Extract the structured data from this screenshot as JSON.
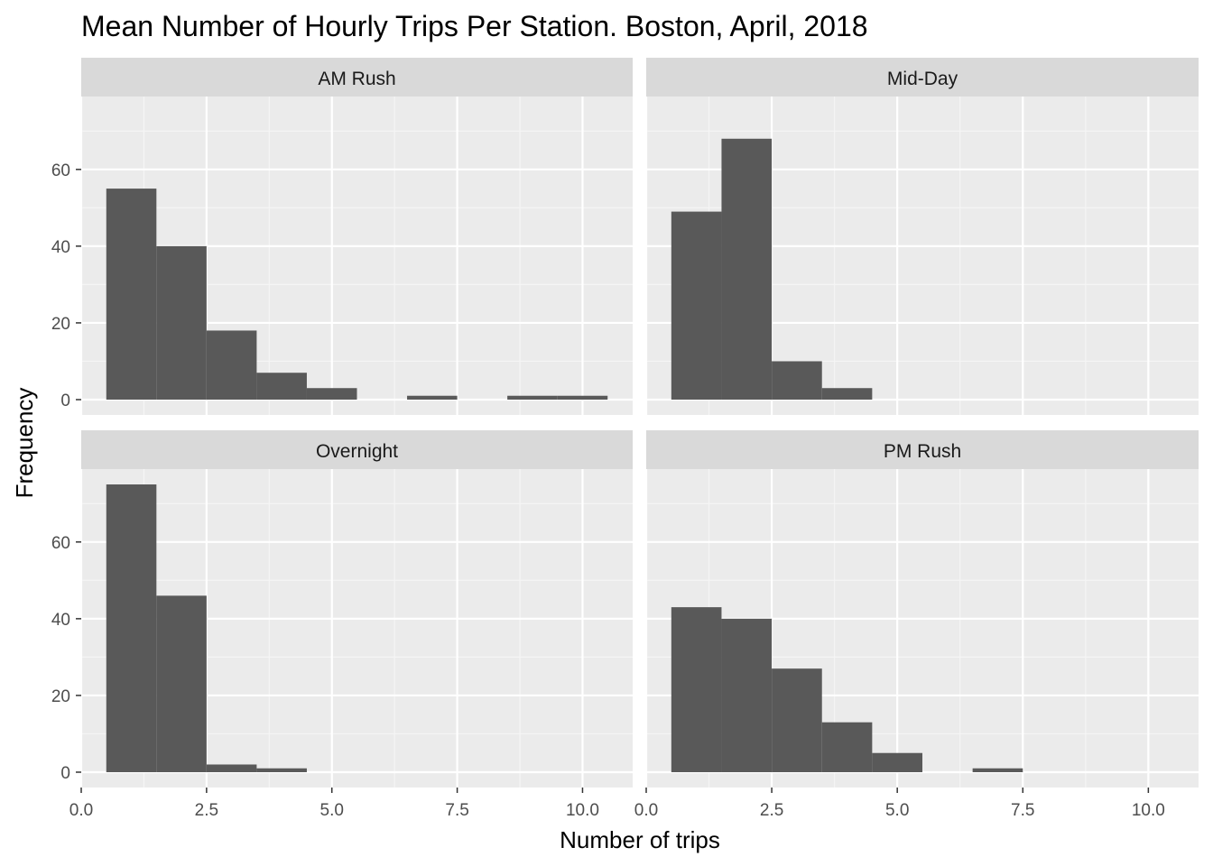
{
  "chart_data": {
    "type": "bar",
    "title": "Mean Number of Hourly Trips Per Station. Boston, April, 2018",
    "xlabel": "Number of trips",
    "ylabel": "Frequency",
    "xlim": [
      0,
      11
    ],
    "ylim": [
      -4,
      79
    ],
    "x_ticks": [
      0,
      2.5,
      5,
      7.5,
      10
    ],
    "x_tick_labels": [
      "0.0",
      "2.5",
      "5.0",
      "7.5",
      "10.0"
    ],
    "y_ticks": [
      0,
      20,
      40,
      60
    ],
    "y_tick_labels": [
      "0",
      "20",
      "40",
      "60"
    ],
    "bin_width": 1,
    "bin_centers": [
      1,
      2,
      3,
      4,
      5,
      6,
      7,
      8,
      9,
      10
    ],
    "grid": true,
    "legend": "none",
    "bar_color": "#595959",
    "panel_background": "#ebebeb",
    "strip_background": "#d9d9d9",
    "panels": [
      {
        "name": "AM Rush",
        "values": [
          55,
          40,
          18,
          7,
          3,
          0,
          1,
          0,
          1,
          1
        ]
      },
      {
        "name": "Mid-Day",
        "values": [
          49,
          68,
          10,
          3,
          0,
          0,
          0,
          0,
          0,
          0
        ]
      },
      {
        "name": "Overnight",
        "values": [
          75,
          46,
          2,
          1,
          0,
          0,
          0,
          0,
          0,
          0
        ]
      },
      {
        "name": "PM Rush",
        "values": [
          43,
          40,
          27,
          13,
          5,
          0,
          1,
          0,
          0,
          0
        ]
      }
    ]
  }
}
